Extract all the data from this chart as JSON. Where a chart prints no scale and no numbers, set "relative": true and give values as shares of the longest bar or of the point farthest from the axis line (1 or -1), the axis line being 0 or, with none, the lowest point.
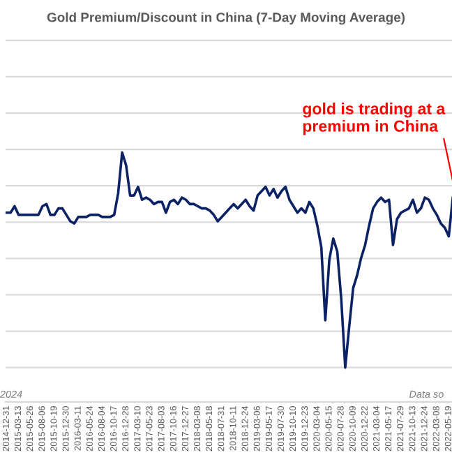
{
  "chart_data": {
    "type": "line",
    "title": "Gold Premium/Discount in China (7-Day Moving Average)",
    "relative": true,
    "grid": "y",
    "legend": false,
    "marker": "none",
    "line_style": "solid",
    "annotations": [
      "gold is trading at a premium in China",
      "2024",
      "Data so"
    ],
    "categories": [
      "2014-12-31",
      null,
      null,
      "2015-03-13",
      null,
      null,
      "2015-05-26",
      null,
      null,
      "2015-08-06",
      null,
      null,
      "2015-10-19",
      null,
      null,
      "2015-12-30",
      null,
      null,
      "2016-03-11",
      null,
      null,
      "2016-05-24",
      null,
      null,
      "2016-08-04",
      null,
      null,
      "2016-10-17",
      null,
      null,
      "2016-12-28",
      null,
      null,
      "2017-03-10",
      null,
      null,
      "2017-05-23",
      null,
      null,
      "2017-08-03",
      null,
      null,
      "2017-10-16",
      null,
      null,
      "2017-12-27",
      null,
      null,
      "2018-03-08",
      null,
      null,
      "2018-05-18",
      null,
      null,
      "2018-07-31",
      null,
      null,
      "2018-10-11",
      null,
      null,
      "2018-12-24",
      null,
      null,
      "2019-03-06",
      null,
      null,
      "2019-05-17",
      null,
      null,
      "2019-07-30",
      null,
      null,
      "2019-10-10",
      null,
      null,
      "2019-12-23",
      null,
      null,
      "2020-03-04",
      null,
      null,
      "2020-05-15",
      null,
      null,
      "2020-07-28",
      null,
      null,
      "2020-10-09",
      null,
      null,
      "2020-12-22",
      null,
      null,
      "2021-03-04",
      null,
      null,
      "2021-05-17",
      null,
      null,
      "2021-07-29",
      null,
      null,
      "2021-10-13",
      null,
      null,
      "2021-12-24",
      null,
      null,
      "2022-03-08",
      null,
      null,
      "2022-05-19",
      null
    ],
    "series": [
      {
        "color": "#0b2265",
        "values": [
          0.72,
          0.72,
          0.75,
          0.71,
          0.71,
          0.71,
          0.71,
          0.71,
          0.71,
          0.75,
          0.76,
          0.71,
          0.71,
          0.74,
          0.74,
          0.71,
          0.68,
          0.67,
          0.7,
          0.7,
          0.7,
          0.71,
          0.71,
          0.71,
          0.7,
          0.7,
          0.7,
          0.71,
          0.81,
          1,
          0.94,
          0.8,
          0.8,
          0.84,
          0.78,
          0.79,
          0.78,
          0.76,
          0.77,
          0.77,
          0.72,
          0.77,
          0.78,
          0.76,
          0.79,
          0.78,
          0.76,
          0.76,
          0.75,
          0.74,
          0.74,
          0.73,
          0.71,
          0.68,
          0.7,
          0.72,
          0.74,
          0.76,
          0.74,
          0.76,
          0.78,
          0.75,
          0.73,
          0.8,
          0.82,
          0.84,
          0.8,
          0.83,
          0.79,
          0.82,
          0.84,
          0.78,
          0.75,
          0.72,
          0.74,
          0.72,
          0.77,
          0.74,
          0.66,
          0.56,
          0.22,
          0.5,
          0.6,
          0.54,
          0.32,
          0,
          0.19,
          0.37,
          0.43,
          0.51,
          0.57,
          0.66,
          0.74,
          0.77,
          0.79,
          0.77,
          0.78,
          0.57,
          0.69,
          0.72,
          0.73,
          0.74,
          0.78,
          0.72,
          0.74,
          0.79,
          0.78,
          0.74,
          0.71,
          0.67,
          0.65,
          0.61,
          0.79
        ]
      }
    ]
  }
}
